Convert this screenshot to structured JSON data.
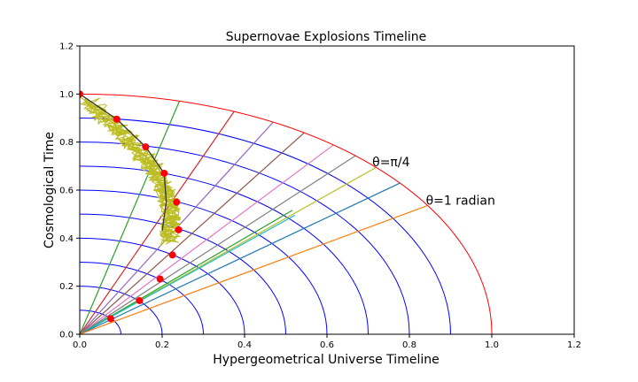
{
  "chart_data": {
    "type": "line",
    "title": "Supernovae Explosions Timeline",
    "xlabel": "Hypergeometrical Universe Timeline",
    "ylabel": "Cosmological Time",
    "xlim": [
      0.0,
      1.2
    ],
    "ylim": [
      0.0,
      1.2
    ],
    "xticks": [
      "0.0",
      "0.2",
      "0.4",
      "0.6",
      "0.8",
      "1.0",
      "1.2"
    ],
    "yticks": [
      "0.0",
      "0.2",
      "0.4",
      "0.6",
      "0.8",
      "1.0",
      "1.2"
    ],
    "grid": false,
    "colors": {
      "outer_circle": "#ff0000",
      "inner_arcs": "#0000ff",
      "red_dots": "#ff0000",
      "noise": "#bcbd22",
      "curve": "#333333",
      "ray_palette": [
        "#2ca02c",
        "#d62728",
        "#9467bd",
        "#8c564b",
        "#e377c2",
        "#7f7f7f",
        "#bcbd22",
        "#17becf",
        "#1f77b4",
        "#ff7f0e"
      ]
    },
    "outer_circle_radius": 1.0,
    "inner_arc_radii": [
      0.1,
      0.2,
      0.3,
      0.4,
      0.5,
      0.6,
      0.7,
      0.8,
      0.9
    ],
    "rays": [
      {
        "angle_deg": 76,
        "color": "#2ca02c"
      },
      {
        "angle_deg": 68,
        "color": "#d62728"
      },
      {
        "angle_deg": 62,
        "color": "#9467bd"
      },
      {
        "angle_deg": 57,
        "color": "#8c564b"
      },
      {
        "angle_deg": 52,
        "color": "#e377c2"
      },
      {
        "angle_deg": 48,
        "color": "#7f7f7f"
      },
      {
        "angle_deg": 44,
        "color": "#bcbd22"
      },
      {
        "angle_deg": 45,
        "color": "#2ca02c",
        "length": 0.73
      },
      {
        "angle_deg": 43.5,
        "color": "#17becf",
        "length": 0.72
      },
      {
        "angle_deg": 39,
        "color": "#1f77b4"
      },
      {
        "angle_deg": 32.4,
        "color": "#ff7f0e"
      }
    ],
    "points": {
      "x": [
        0.0,
        0.09,
        0.16,
        0.205,
        0.235,
        0.24,
        0.225,
        0.195,
        0.145,
        0.075
      ],
      "y": [
        1.0,
        0.895,
        0.78,
        0.67,
        0.55,
        0.435,
        0.33,
        0.23,
        0.14,
        0.065
      ]
    },
    "curve_points": {
      "x": [
        0.0,
        0.09,
        0.16,
        0.205,
        0.21,
        0.2
      ],
      "y": [
        1.0,
        0.895,
        0.78,
        0.67,
        0.55,
        0.43
      ]
    },
    "annotations": [
      {
        "text": "θ=π/4",
        "x": 0.71,
        "y": 0.7
      },
      {
        "text": "θ=1 radian",
        "x": 0.84,
        "y": 0.54
      }
    ]
  }
}
